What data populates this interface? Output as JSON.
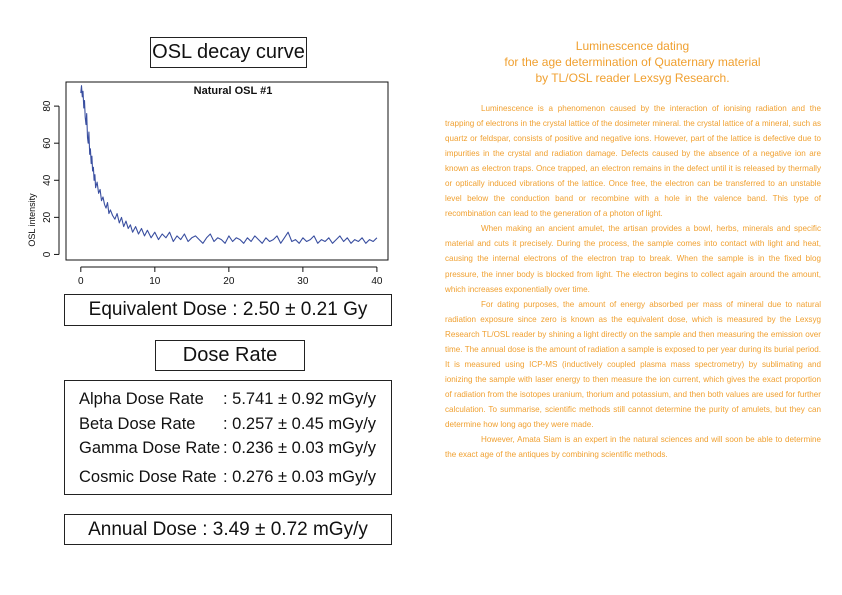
{
  "left_panel": {
    "decay_title": "OSL decay curve",
    "equivalent_dose": "Equivalent Dose : 2.50 ± 0.21 Gy",
    "dose_rate_title": "Dose Rate",
    "dose_rates": [
      {
        "label": "Alpha Dose Rate",
        "value": ": 5.741 ± 0.92 mGy/y"
      },
      {
        "label": "Beta Dose Rate",
        "value": ": 0.257 ± 0.45 mGy/y"
      },
      {
        "label": "Gamma Dose Rate",
        "value": ": 0.236 ± 0.03 mGy/y"
      },
      {
        "label": "Cosmic Dose Rate",
        "value": ": 0.276 ± 0.03 mGy/y"
      }
    ],
    "annual_dose": "Annual Dose : 3.49 ± 0.72 mGy/y"
  },
  "chart_data": {
    "type": "line",
    "title": "Natural OSL #1",
    "xlabel": "",
    "ylabel": "OSL intensity",
    "xlim": [
      -2,
      41.5
    ],
    "ylim": [
      -3,
      93
    ],
    "xticks": [
      0,
      10,
      20,
      30,
      40
    ],
    "yticks": [
      0,
      20,
      40,
      60,
      80
    ],
    "grid": false,
    "series": [
      {
        "color": "#3a4fa0",
        "x": [
          0,
          0.1,
          0.2,
          0.3,
          0.4,
          0.5,
          0.6,
          0.7,
          0.8,
          0.9,
          1.0,
          1.1,
          1.2,
          1.3,
          1.4,
          1.5,
          1.6,
          1.7,
          1.8,
          1.9,
          2.0,
          2.2,
          2.4,
          2.6,
          2.8,
          3.0,
          3.2,
          3.4,
          3.6,
          3.8,
          4.0,
          4.3,
          4.6,
          4.9,
          5.2,
          5.5,
          5.8,
          6.1,
          6.4,
          6.7,
          7.0,
          7.4,
          7.8,
          8.2,
          8.6,
          9.0,
          9.5,
          10.0,
          10.5,
          11.0,
          11.5,
          12.0,
          12.5,
          13.0,
          13.5,
          14.0,
          14.5,
          15.0,
          15.5,
          16.0,
          16.5,
          17.0,
          17.5,
          18.0,
          18.5,
          19.0,
          19.5,
          20.0,
          20.5,
          21.0,
          21.5,
          22.0,
          22.5,
          23.0,
          23.5,
          24.0,
          24.5,
          25.0,
          25.5,
          26.0,
          26.5,
          27.0,
          27.5,
          28.0,
          28.5,
          29.0,
          29.5,
          30.0,
          30.5,
          31.0,
          31.5,
          32.0,
          32.5,
          33.0,
          33.5,
          34.0,
          34.5,
          35.0,
          35.5,
          36.0,
          36.5,
          37.0,
          37.5,
          38.0,
          38.5,
          39.0,
          39.5,
          40.0
        ],
        "y": [
          87,
          91,
          85,
          88,
          79,
          83,
          74,
          70,
          76,
          63,
          60,
          66,
          54,
          57,
          49,
          53,
          45,
          47,
          40,
          43,
          36,
          39,
          33,
          35,
          29,
          31,
          27,
          25,
          28,
          22,
          24,
          21,
          19,
          22,
          17,
          20,
          15,
          18,
          14,
          16,
          12,
          15,
          11,
          14,
          10,
          13,
          9,
          12,
          8,
          11,
          9,
          12,
          7,
          10,
          8,
          11,
          7,
          9,
          10,
          8,
          6,
          9,
          11,
          7,
          9,
          8,
          6,
          10,
          7,
          9,
          8,
          6,
          9,
          7,
          10,
          8,
          6,
          9,
          7,
          8,
          10,
          6,
          9,
          12,
          7,
          8,
          6,
          9,
          7,
          8,
          10,
          6,
          8,
          7,
          9,
          6,
          8,
          10,
          7,
          9,
          6,
          8,
          7,
          9,
          6,
          8,
          7,
          9
        ]
      }
    ]
  },
  "article": {
    "title_lines": [
      "Luminescence dating",
      "for the age determination of Quaternary material",
      "by TL/OSL reader Lexsyg Research."
    ],
    "paragraphs": [
      "Luminescence is a phenomenon caused by the interaction of ionising radiation and the trapping of electrons in the crystal lattice of the dosimeter mineral. the crystal lattice of a mineral, such as quartz or feldspar, consists of positive and negative ions. However, part of the lattice is defective due to impurities in the crystal and radiation damage. Defects caused by the absence of a negative ion are known as electron traps. Once trapped, an electron remains in the defect until it is released by thermally or optically induced vibrations of the lattice. Once free, the electron can be transferred to an unstable level below the conduction band or recombine with a hole in the valence band. This type of recombination can lead to the generation of a photon of light.",
      "When making an ancient amulet, the artisan provides a bowl, herbs, minerals and specific material and cuts it precisely. During the process, the sample comes into contact with light and heat, causing the internal electrons of the electron trap to break. When the sample is in the fixed blog pressure, the inner body is blocked from light. The electron begins to collect again around the amount, which increases exponentially over time.",
      "For dating purposes, the amount of energy absorbed per mass of mineral due to natural radiation exposure since zero is known as the equivalent dose, which is measured by the Lexsyg Research TL/OSL reader by shining a light directly on the sample and then measuring the emission over time. The annual dose is the amount of radiation a sample is exposed to per year during its burial period. It is measured using ICP-MS (inductively coupled plasma mass spectrometry) by sublimating and ionizing the sample with laser energy to then measure the ion current, which gives the exact proportion of radiation from the isotopes uranium, thorium and potassium, and then both values are used for further calculation. To summarise, scientific methods still cannot determine the purity of amulets, but they can determine how long ago they were made.",
      "However, Amata Siam is an expert in the natural sciences and will soon be able to determine the exact age of the antiques by combining scientific methods."
    ]
  }
}
